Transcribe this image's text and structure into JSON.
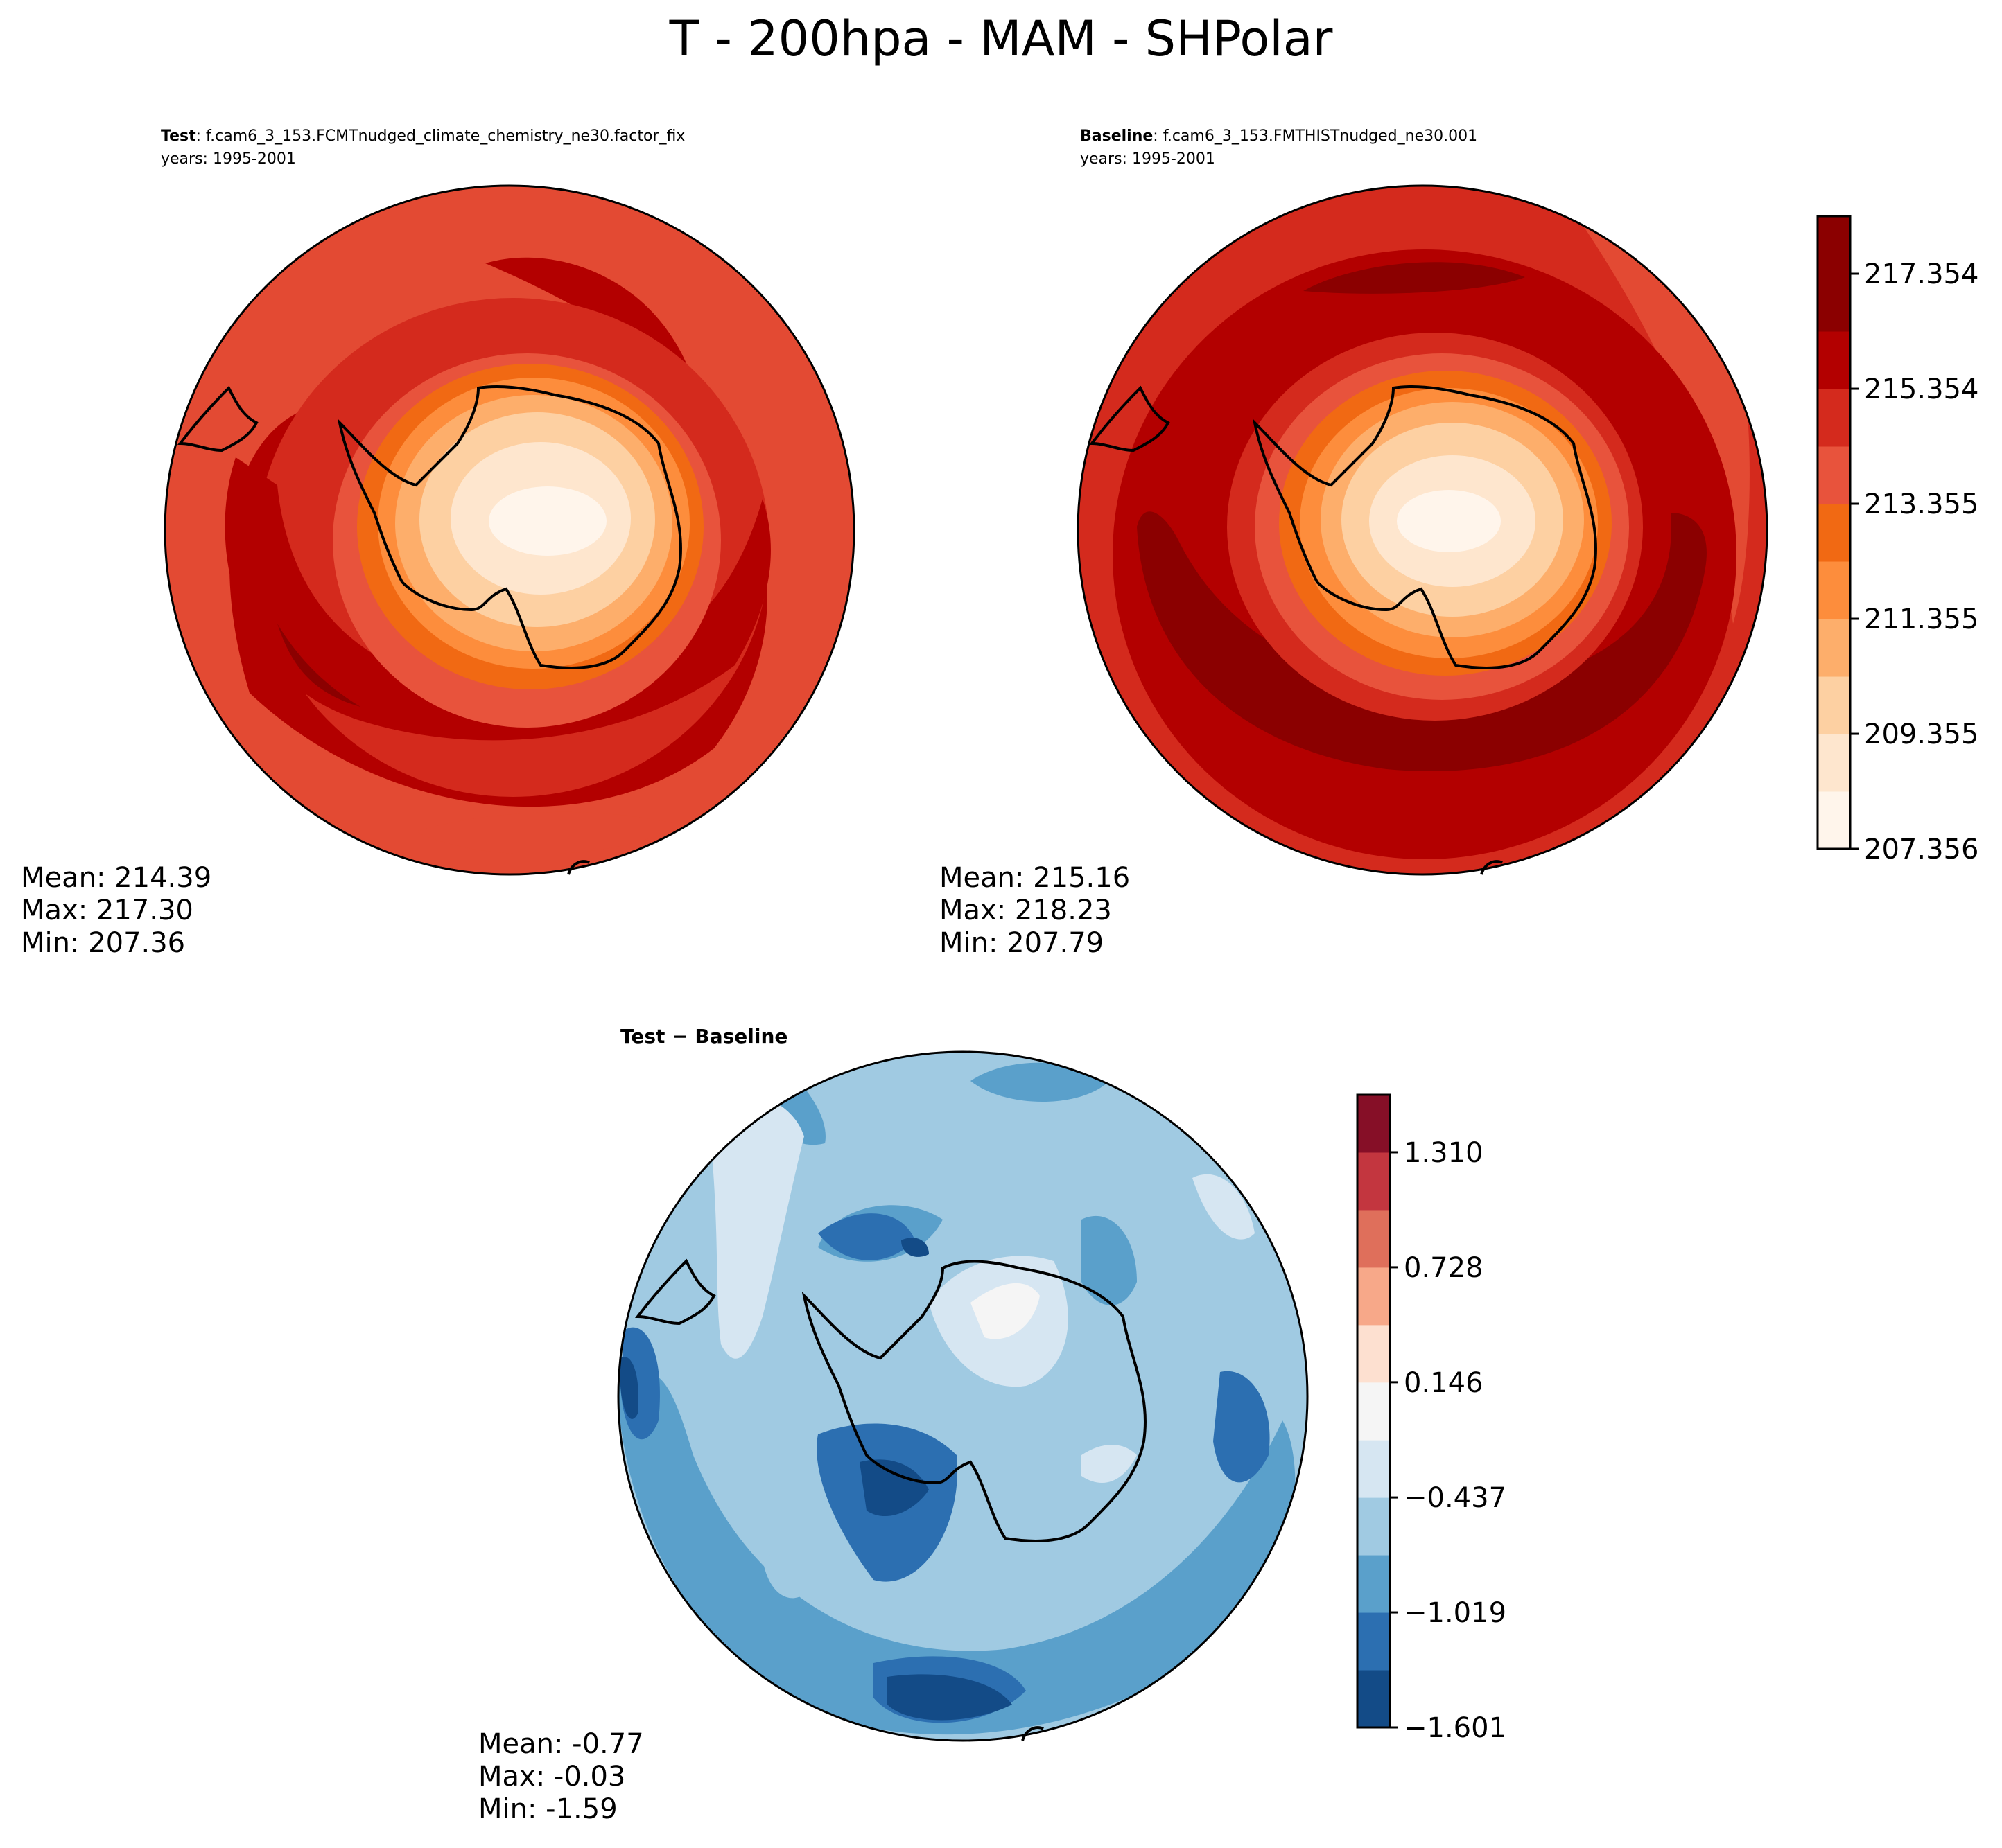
{
  "figure": {
    "title": "T - 200hpa - MAM - SHPolar"
  },
  "chart_data": [
    {
      "type": "contour-map",
      "projection": "south-polar-stereographic",
      "id": "test",
      "label_bold": "Test",
      "label_rest": ": f.cam6_3_153.FCMTnudged_climate_chemistry_ne30.factor_fix",
      "years": "years: 1995-2001",
      "stats": {
        "mean": "Mean: 214.39",
        "max": "Max: 217.30",
        "min": "Min: 207.36"
      },
      "field": {
        "center": 207.4,
        "ring_mid": 216.6,
        "outer": 214.8
      },
      "colormap": "OrRd-like (Reds)"
    },
    {
      "type": "contour-map",
      "projection": "south-polar-stereographic",
      "id": "baseline",
      "label_bold": "Baseline",
      "label_rest": ": f.cam6_3_153.FMTHISTnudged_ne30.001",
      "years": "years: 1995-2001",
      "stats": {
        "mean": "Mean: 215.16",
        "max": "Max: 218.23",
        "min": "Min: 207.79"
      },
      "field": {
        "center": 207.8,
        "ring_mid": 217.9,
        "outer": 216.0
      },
      "colormap": "OrRd-like (Reds)"
    },
    {
      "type": "contour-map",
      "projection": "south-polar-stereographic",
      "id": "diff",
      "title_text": "Test − Baseline",
      "stats": {
        "mean": "Mean: -0.77",
        "max": "Max: -0.03",
        "min": "Min: -1.59"
      },
      "field": {
        "center": -0.5,
        "ring_mid": -1.1,
        "outer": -0.8
      },
      "colormap": "RdBu_r"
    }
  ],
  "colorbar_abs": {
    "levels": [
      207.356,
      208.356,
      209.355,
      210.355,
      211.355,
      212.355,
      213.355,
      214.355,
      215.354,
      216.354,
      217.354,
      218.354
    ],
    "tick_labels": [
      "207.356",
      "209.355",
      "211.355",
      "213.355",
      "215.354",
      "217.354"
    ],
    "tick_values": [
      207.356,
      209.355,
      211.355,
      213.355,
      215.354,
      217.354
    ],
    "colors": [
      "#fff5eb",
      "#fee6ce",
      "#fdd0a2",
      "#fdae6b",
      "#fd8d3c",
      "#f16913",
      "#e8533c",
      "#d42a1d",
      "#b30000",
      "#8b0000",
      "#8b0000"
    ]
  },
  "colorbar_diff": {
    "levels": [
      -1.601,
      -1.31,
      -1.019,
      -0.728,
      -0.437,
      -0.146,
      0.146,
      0.437,
      0.728,
      1.019,
      1.31,
      1.601
    ],
    "tick_labels": [
      "−1.601",
      "−1.019",
      "−0.437",
      "0.146",
      "0.728",
      "1.310"
    ],
    "tick_values": [
      -1.601,
      -1.019,
      -0.437,
      0.146,
      0.728,
      1.31
    ],
    "colors": [
      "#134b87",
      "#2c6fb1",
      "#5aa0cb",
      "#a0cae2",
      "#d6e6f2",
      "#f5f5f5",
      "#fde0d0",
      "#f7a889",
      "#df6f5b",
      "#c3363f",
      "#860f27"
    ]
  }
}
